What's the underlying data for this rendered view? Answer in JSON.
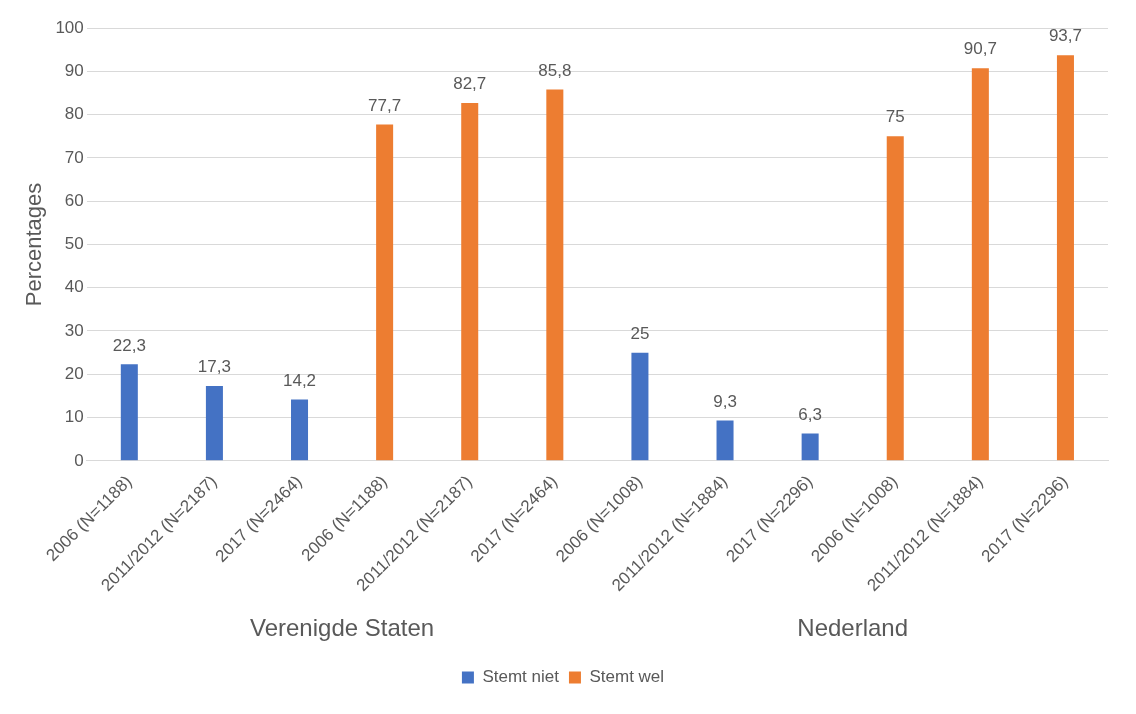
{
  "chart_data": {
    "type": "bar",
    "ylabel": "Percentages",
    "categories": [
      "2006 (N=1188)",
      "2011/2012 (N=2187)",
      "2017 (N=2464)",
      "2006 (N=1188)",
      "2011/2012 (N=2187)",
      "2017 (N=2464)",
      "2006 (N=1008)",
      "2011/2012 (N=1884)",
      "2017 (N=2296)",
      "2006 (N=1008)",
      "2011/2012 (N=1884)",
      "2017 (N=2296)"
    ],
    "series": [
      {
        "name": "Stemt niet",
        "color": "#4472c4",
        "values": [
          22.3,
          17.3,
          14.2,
          null,
          null,
          null,
          25,
          9.3,
          6.3,
          null,
          null,
          null
        ],
        "value_labels": [
          "22,3",
          "17,3",
          "14,2",
          null,
          null,
          null,
          "25",
          "9,3",
          "6,3",
          null,
          null,
          null
        ]
      },
      {
        "name": "Stemt wel",
        "color": "#ed7d31",
        "values": [
          null,
          null,
          null,
          77.7,
          82.7,
          85.8,
          null,
          null,
          null,
          75,
          90.7,
          93.7
        ],
        "value_labels": [
          null,
          null,
          null,
          "77,7",
          "82,7",
          "85,8",
          null,
          null,
          null,
          "75",
          "90,7",
          "93,7"
        ]
      }
    ],
    "ylim": [
      0,
      100
    ],
    "yticks": [
      0,
      10,
      20,
      30,
      40,
      50,
      60,
      70,
      80,
      90,
      100
    ],
    "grid": "y",
    "legend": "bottom",
    "annotations": [
      "Verenigde Staten",
      "Nederland"
    ]
  }
}
